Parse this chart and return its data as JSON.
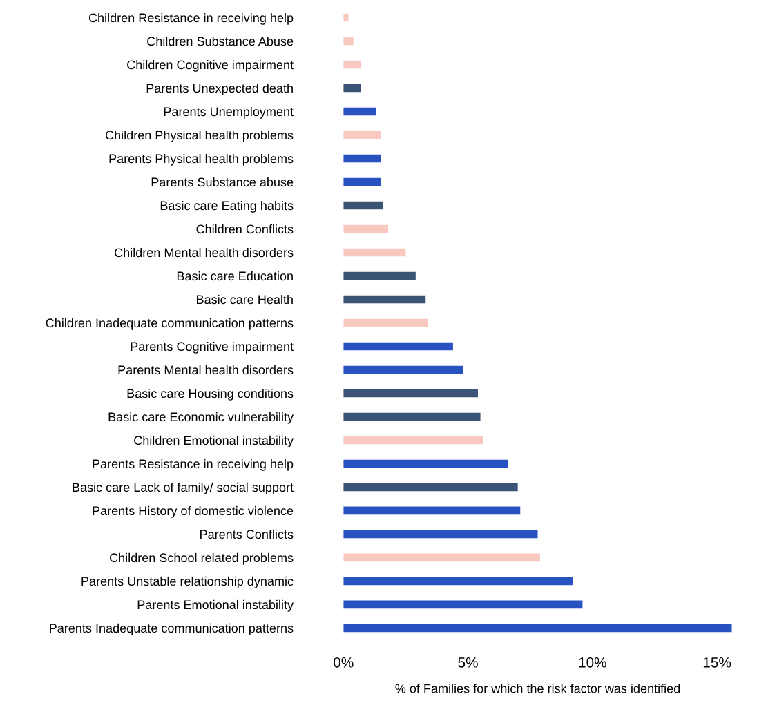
{
  "chart_data": {
    "type": "bar",
    "orientation": "horizontal",
    "xlabel": "% of Families for which the risk factor was identified",
    "categories": [
      "Children Resistance in receiving help",
      "Children Substance Abuse",
      "Children Cognitive impairment",
      "Parents Unexpected death",
      "Parents Unemployment",
      "Children Physical health problems",
      "Parents Physical health problems",
      "Parents Substance abuse",
      "Basic care Eating habits",
      "Children Conflicts",
      "Children Mental health disorders",
      "Basic care Education",
      "Basic care Health",
      "Children Inadequate communication patterns",
      "Parents Cognitive impairment",
      "Parents Mental health disorders",
      "Basic care Housing conditions",
      "Basic care Economic vulnerability",
      "Children Emotional instability",
      "Parents Resistance in receiving help",
      "Basic care Lack of family/ social support",
      "Parents History of domestic violence",
      "Parents Conflicts",
      "Children School related problems",
      "Parents Unstable relationship dynamic",
      "Parents Emotional instability",
      "Parents Inadequate communication patterns"
    ],
    "values": [
      0.2,
      0.4,
      0.7,
      0.7,
      1.3,
      1.5,
      1.5,
      1.5,
      1.6,
      1.8,
      2.5,
      2.9,
      3.3,
      3.4,
      4.4,
      4.8,
      5.4,
      5.5,
      5.6,
      6.6,
      7.0,
      7.1,
      7.8,
      7.9,
      9.2,
      9.6,
      15.6
    ],
    "colors": [
      "#f7c9bf",
      "#f7c9bf",
      "#f7c9bf",
      "#3b5475",
      "#2752c0",
      "#f7c9bf",
      "#2752c0",
      "#2752c0",
      "#3b5475",
      "#f7c9bf",
      "#f7c9bf",
      "#3b5475",
      "#3b5475",
      "#f7c9bf",
      "#2752c0",
      "#2752c0",
      "#3b5475",
      "#3b5475",
      "#f7c9bf",
      "#2752c0",
      "#3b5475",
      "#2752c0",
      "#2752c0",
      "#f7c9bf",
      "#2752c0",
      "#2752c0",
      "#2752c0"
    ],
    "xlim": [
      0,
      15.6
    ],
    "xticks": [
      {
        "value": 0,
        "label": "0%"
      },
      {
        "value": 5,
        "label": "5%"
      },
      {
        "value": 10,
        "label": "10%"
      },
      {
        "value": 15,
        "label": "15%"
      }
    ],
    "grid": false,
    "legend": false
  }
}
